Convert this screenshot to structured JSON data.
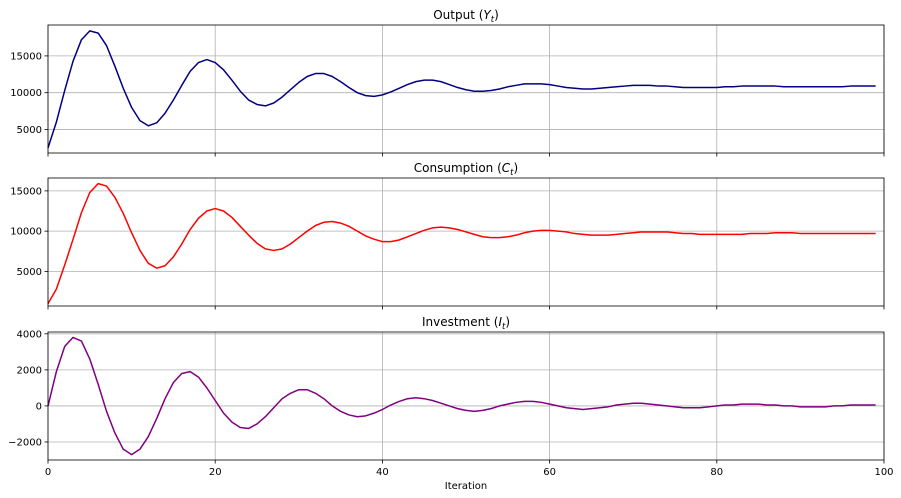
{
  "chart_data": [
    {
      "type": "line",
      "title": "Output (Y_t)",
      "title_main": "Output (",
      "title_var": "Y",
      "title_sub": "t",
      "title_close": ")",
      "color": "#000080",
      "xlim": [
        0,
        100
      ],
      "ylim": [
        1800,
        19200
      ],
      "yticks": [
        5000,
        10000,
        15000
      ],
      "grid": true,
      "x": [
        0,
        1,
        2,
        3,
        4,
        5,
        6,
        7,
        8,
        9,
        10,
        11,
        12,
        13,
        14,
        15,
        16,
        17,
        18,
        19,
        20,
        21,
        22,
        23,
        24,
        25,
        26,
        27,
        28,
        29,
        30,
        31,
        32,
        33,
        34,
        35,
        36,
        37,
        38,
        39,
        40,
        41,
        42,
        43,
        44,
        45,
        46,
        47,
        48,
        49,
        50,
        51,
        52,
        53,
        54,
        55,
        56,
        57,
        58,
        59,
        60,
        61,
        62,
        63,
        64,
        65,
        66,
        67,
        68,
        69,
        70,
        71,
        72,
        73,
        74,
        75,
        76,
        77,
        78,
        79,
        80,
        81,
        82,
        83,
        84,
        85,
        86,
        87,
        88,
        89,
        90,
        91,
        92,
        93,
        94,
        95,
        96,
        97,
        98,
        99
      ],
      "y": [
        2500,
        6000,
        10300,
        14300,
        17200,
        18400,
        18100,
        16400,
        13600,
        10600,
        8000,
        6200,
        5500,
        5900,
        7200,
        9000,
        11000,
        12900,
        14100,
        14500,
        14100,
        13100,
        11700,
        10200,
        9000,
        8400,
        8200,
        8600,
        9400,
        10400,
        11400,
        12200,
        12600,
        12600,
        12200,
        11500,
        10700,
        10000,
        9600,
        9500,
        9700,
        10100,
        10600,
        11100,
        11500,
        11700,
        11700,
        11500,
        11100,
        10700,
        10400,
        10200,
        10200,
        10300,
        10500,
        10800,
        11000,
        11200,
        11200,
        11200,
        11100,
        10900,
        10700,
        10600,
        10500,
        10500,
        10600,
        10700,
        10800,
        10900,
        11000,
        11000,
        11000,
        10900,
        10900,
        10800,
        10700,
        10700,
        10700,
        10700,
        10700,
        10800,
        10800,
        10900,
        10900,
        10900,
        10900,
        10900,
        10800,
        10800,
        10800,
        10800,
        10800,
        10800,
        10800,
        10800,
        10900,
        10900,
        10900,
        10900
      ]
    },
    {
      "type": "line",
      "title": "Consumption (C_t)",
      "title_main": "Consumption (",
      "title_var": "C",
      "title_sub": "t",
      "title_close": ")",
      "color": "#ff0000",
      "xlim": [
        0,
        100
      ],
      "ylim": [
        700,
        16600
      ],
      "yticks": [
        5000,
        10000,
        15000
      ],
      "grid": true,
      "x": [
        0,
        1,
        2,
        3,
        4,
        5,
        6,
        7,
        8,
        9,
        10,
        11,
        12,
        13,
        14,
        15,
        16,
        17,
        18,
        19,
        20,
        21,
        22,
        23,
        24,
        25,
        26,
        27,
        28,
        29,
        30,
        31,
        32,
        33,
        34,
        35,
        36,
        37,
        38,
        39,
        40,
        41,
        42,
        43,
        44,
        45,
        46,
        47,
        48,
        49,
        50,
        51,
        52,
        53,
        54,
        55,
        56,
        57,
        58,
        59,
        60,
        61,
        62,
        63,
        64,
        65,
        66,
        67,
        68,
        69,
        70,
        71,
        72,
        73,
        74,
        75,
        76,
        77,
        78,
        79,
        80,
        81,
        82,
        83,
        84,
        85,
        86,
        87,
        88,
        89,
        90,
        91,
        92,
        93,
        94,
        95,
        96,
        97,
        98,
        99
      ],
      "y": [
        1000,
        2800,
        5800,
        9000,
        12300,
        14800,
        15900,
        15600,
        14200,
        12200,
        9800,
        7600,
        6000,
        5400,
        5700,
        6800,
        8400,
        10200,
        11600,
        12500,
        12800,
        12500,
        11700,
        10600,
        9500,
        8500,
        7800,
        7600,
        7800,
        8400,
        9200,
        10000,
        10700,
        11100,
        11200,
        11000,
        10600,
        10000,
        9400,
        9000,
        8700,
        8700,
        8900,
        9300,
        9700,
        10100,
        10400,
        10500,
        10400,
        10200,
        9900,
        9600,
        9300,
        9200,
        9200,
        9300,
        9500,
        9800,
        10000,
        10100,
        10100,
        10000,
        9900,
        9700,
        9600,
        9500,
        9500,
        9500,
        9600,
        9700,
        9800,
        9900,
        9900,
        9900,
        9900,
        9800,
        9700,
        9700,
        9600,
        9600,
        9600,
        9600,
        9600,
        9600,
        9700,
        9700,
        9700,
        9800,
        9800,
        9800,
        9700,
        9700,
        9700,
        9700,
        9700,
        9700,
        9700,
        9700,
        9700,
        9700
      ]
    },
    {
      "type": "line",
      "title": "Investment (I_t)",
      "title_main": "Investment (",
      "title_var": "I",
      "title_sub": "t",
      "title_close": ")",
      "color": "#800080",
      "xlim": [
        0,
        100
      ],
      "ylim": [
        -3000,
        4100
      ],
      "yticks": [
        -2000,
        0,
        2000,
        4000
      ],
      "grid": true,
      "xticks": [
        0,
        20,
        40,
        60,
        80,
        100
      ],
      "xlabel": "Iteration",
      "x": [
        0,
        1,
        2,
        3,
        4,
        5,
        6,
        7,
        8,
        9,
        10,
        11,
        12,
        13,
        14,
        15,
        16,
        17,
        18,
        19,
        20,
        21,
        22,
        23,
        24,
        25,
        26,
        27,
        28,
        29,
        30,
        31,
        32,
        33,
        34,
        35,
        36,
        37,
        38,
        39,
        40,
        41,
        42,
        43,
        44,
        45,
        46,
        47,
        48,
        49,
        50,
        51,
        52,
        53,
        54,
        55,
        56,
        57,
        58,
        59,
        60,
        61,
        62,
        63,
        64,
        65,
        66,
        67,
        68,
        69,
        70,
        71,
        72,
        73,
        74,
        75,
        76,
        77,
        78,
        79,
        80,
        81,
        82,
        83,
        84,
        85,
        86,
        87,
        88,
        89,
        90,
        91,
        92,
        93,
        94,
        95,
        96,
        97,
        98,
        99
      ],
      "y": [
        0,
        1900,
        3300,
        3800,
        3600,
        2600,
        1200,
        -300,
        -1500,
        -2400,
        -2700,
        -2400,
        -1700,
        -700,
        400,
        1300,
        1800,
        1900,
        1600,
        1000,
        300,
        -400,
        -900,
        -1200,
        -1250,
        -1000,
        -600,
        -100,
        400,
        700,
        900,
        900,
        700,
        400,
        0,
        -300,
        -500,
        -600,
        -550,
        -400,
        -200,
        50,
        250,
        400,
        450,
        400,
        300,
        150,
        0,
        -150,
        -250,
        -300,
        -250,
        -150,
        0,
        100,
        200,
        250,
        250,
        200,
        100,
        0,
        -100,
        -150,
        -200,
        -150,
        -100,
        -50,
        50,
        100,
        150,
        150,
        100,
        50,
        0,
        -50,
        -100,
        -100,
        -100,
        -50,
        0,
        50,
        50,
        100,
        100,
        100,
        50,
        50,
        0,
        0,
        -50,
        -50,
        -50,
        -50,
        0,
        0,
        50,
        50,
        50,
        50
      ]
    }
  ]
}
